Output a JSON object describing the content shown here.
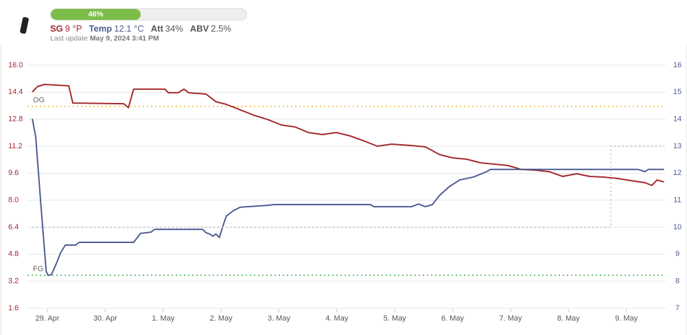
{
  "header": {
    "progress": {
      "value": 46,
      "label": "46%"
    },
    "stats": [
      {
        "label": "SG",
        "value": "9 °P",
        "color": "#a4282d"
      },
      {
        "label": "Temp",
        "value": "12.1 °C",
        "color": "#4e5b94"
      },
      {
        "label": "Att",
        "value": "34%",
        "color": "#555555"
      },
      {
        "label": "ABV",
        "value": "2.5%",
        "color": "#555555"
      }
    ],
    "updated_label": "Last update",
    "updated": "May 9, 2024 3:41 PM"
  },
  "chart_data": {
    "type": "line",
    "xlim": [
      -0.344,
      10.68
    ],
    "xticks": [
      {
        "value": 0,
        "label": "29. Apr"
      },
      {
        "value": 1,
        "label": "30. Apr"
      },
      {
        "value": 2,
        "label": "1. May"
      },
      {
        "value": 3,
        "label": "2. May"
      },
      {
        "value": 4,
        "label": "3. May"
      },
      {
        "value": 5,
        "label": "4. May"
      },
      {
        "value": 6,
        "label": "5. May"
      },
      {
        "value": 7,
        "label": "6. May"
      },
      {
        "value": 8,
        "label": "7. May"
      },
      {
        "value": 9,
        "label": "8. May"
      },
      {
        "value": 10,
        "label": "9. May"
      }
    ],
    "ylim": [
      1.6,
      16
    ],
    "yticks": [
      {
        "value": 16,
        "label": "16.0"
      },
      14.4,
      12.8,
      11.2,
      9.6,
      {
        "value": 8,
        "label": "8.0"
      },
      6.4,
      4.8,
      3.2,
      1.6
    ],
    "y2lim": [
      7,
      16
    ],
    "y2ticks": [
      16,
      15,
      14,
      13,
      12,
      11,
      10,
      9,
      8,
      7
    ],
    "grid": true,
    "hlines": [
      {
        "label": "OG",
        "value": 13.56,
        "color": "#f0b429"
      },
      {
        "label": "FG",
        "value": 3.55,
        "color": "#3cb043"
      }
    ],
    "series": [
      {
        "color": "#a4282d",
        "x": [
          -0.26,
          -0.17,
          -0.05,
          0.37,
          0.44,
          1.32,
          1.4,
          1.49,
          2.03,
          2.09,
          2.26,
          2.36,
          2.44,
          2.74,
          2.91,
          3.09,
          3.33,
          3.57,
          3.8,
          4.04,
          4.28,
          4.51,
          4.75,
          4.99,
          5.23,
          5.46,
          5.7,
          5.94,
          6.29,
          6.53,
          6.77,
          7.0,
          7.24,
          7.48,
          7.72,
          7.95,
          8.19,
          8.43,
          8.67,
          8.9,
          9.14,
          9.37,
          9.61,
          9.85,
          10.08,
          10.32,
          10.44,
          10.53,
          10.65
        ],
        "values": [
          14.41,
          14.74,
          14.86,
          14.78,
          13.76,
          13.72,
          13.48,
          14.58,
          14.58,
          14.37,
          14.37,
          14.58,
          14.37,
          14.29,
          13.84,
          13.68,
          13.36,
          13.03,
          12.79,
          12.46,
          12.34,
          12.01,
          11.89,
          12.01,
          11.81,
          11.52,
          11.2,
          11.32,
          11.24,
          11.16,
          10.71,
          10.51,
          10.43,
          10.22,
          10.14,
          10.06,
          9.82,
          9.78,
          9.69,
          9.41,
          9.57,
          9.41,
          9.37,
          9.29,
          9.16,
          9.04,
          8.88,
          9.2,
          9.08
        ]
      },
      {
        "color": "#4e5b94",
        "axis": "y2",
        "x": [
          -0.26,
          -0.2,
          -0.11,
          -0.02,
          0.01,
          0.07,
          0.15,
          0.23,
          0.31,
          0.49,
          0.55,
          1.49,
          1.61,
          1.79,
          1.85,
          2.68,
          2.74,
          2.8,
          2.86,
          2.91,
          2.97,
          3.03,
          3.09,
          3.21,
          3.33,
          3.8,
          3.92,
          5.58,
          5.64,
          6.29,
          6.41,
          6.53,
          6.65,
          6.77,
          6.94,
          7.12,
          7.36,
          7.59,
          7.65,
          8.19,
          10.2,
          10.32,
          10.38,
          10.65
        ],
        "values": [
          14.02,
          13.33,
          10.79,
          8.37,
          8.22,
          8.24,
          8.63,
          9.06,
          9.34,
          9.34,
          9.44,
          9.44,
          9.77,
          9.82,
          9.92,
          9.92,
          9.8,
          9.75,
          9.67,
          9.75,
          9.62,
          10.03,
          10.41,
          10.61,
          10.74,
          10.81,
          10.84,
          10.84,
          10.76,
          10.76,
          10.86,
          10.76,
          10.84,
          11.17,
          11.5,
          11.75,
          11.86,
          12.06,
          12.14,
          12.14,
          12.14,
          12.06,
          12.14,
          12.14
        ]
      },
      {
        "color": "#bbbbbb",
        "axis": "y2",
        "style": "dotted",
        "x": [
          -0.26,
          9.73,
          9.73,
          10.65
        ],
        "values": [
          10,
          10,
          13,
          13
        ]
      }
    ]
  }
}
